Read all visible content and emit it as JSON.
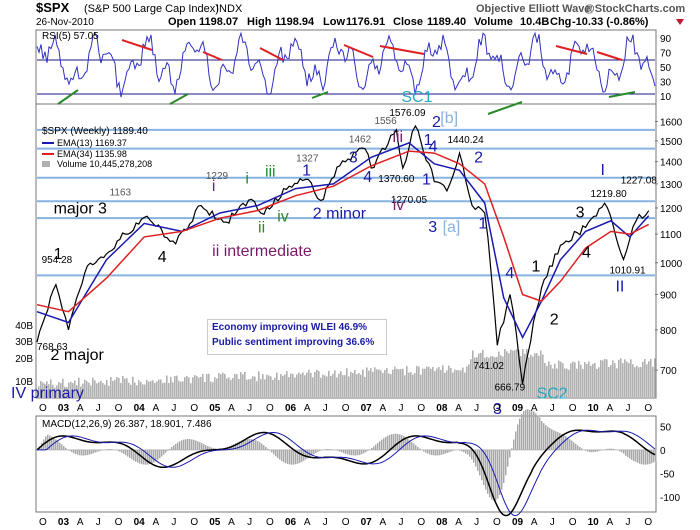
{
  "header": {
    "symbol": "$SPX",
    "index_name": "(S&P 500 Large Cap Index)",
    "exchange": "INDX",
    "brand": "Objective Elliott Wave",
    "source": "@StockCharts.com",
    "date": "26-Nov-2010",
    "open_label": "Open",
    "open": "1198.07",
    "high_label": "High",
    "high": "1198.94",
    "low_label": "Low",
    "low": "1176.91",
    "close_label": "Close",
    "close": "1189.40",
    "volume_label": "Volume",
    "volume": "10.4B",
    "chg_label": "Chg",
    "chg": "-10.33 (-0.86%)"
  },
  "legend": {
    "main": "$SPX (Weekly) 1189.40",
    "ema13": "EMA(13) 1169.37",
    "ema34": "EMA(34) 1135.98",
    "volume": "Volume 10,445,278,208"
  },
  "rsi_panel": {
    "label": "RSI(5) 57.05",
    "ticks": [
      "90",
      "70",
      "50",
      "30",
      "10"
    ],
    "values": [
      90,
      70,
      50,
      30,
      10
    ],
    "ylim": [
      0,
      100
    ]
  },
  "macd_panel": {
    "label": "MACD(12,26,9) 26.387, 18.901, 7.486",
    "ticks": [
      "50",
      "0",
      "-50",
      "-100"
    ],
    "values": [
      50,
      0,
      -50,
      -100
    ],
    "ylim": [
      -130,
      70
    ]
  },
  "volume_ticks": [
    "40B",
    "30B",
    "20B",
    "10B"
  ],
  "x_axis": {
    "months": [
      "O",
      "03",
      "A",
      "J",
      "O",
      "04",
      "A",
      "J",
      "O",
      "05",
      "A",
      "J",
      "O",
      "06",
      "A",
      "J",
      "O",
      "07",
      "A",
      "J",
      "O",
      "08",
      "A",
      "J",
      "O",
      "09",
      "A",
      "J",
      "O",
      "10",
      "A",
      "J",
      "O"
    ],
    "year_labels": [
      "03",
      "04",
      "05",
      "06",
      "07",
      "08",
      "09",
      "10"
    ]
  },
  "info_box": {
    "line1": "Economy improving WLEI 46.9%",
    "line2": "Public sentiment improving 36.6%"
  },
  "colors": {
    "price": "#000000",
    "ema13": "#1a1ab0",
    "ema34": "#e02020",
    "volume": "#b0b0b0",
    "rsi": "#3030c0",
    "level_lines": "#86b3e0",
    "wave_blue": "#1a1aa8",
    "wave_purple": "#7a1a6a",
    "wave_green": "#2a8a2a",
    "wave_cyan": "#29a6c0",
    "wave_lightblue": "#86b3e0"
  },
  "chart_data": {
    "type": "line",
    "title": "$SPX (S&P 500 Large Cap Index) INDX",
    "x_range": [
      "2002-10",
      "2010-11"
    ],
    "y_scale": "log",
    "ylim": [
      640,
      1690
    ],
    "price_ticks": [
      700,
      800,
      900,
      1000,
      1100,
      1200,
      1300,
      1400,
      1500,
      1600
    ],
    "horizontal_levels": [
      959,
      1160,
      1227,
      1327,
      1462,
      1556
    ],
    "series": [
      {
        "name": "$SPX (Weekly)",
        "x": [
          "2002-10",
          "2003-01",
          "2003-03",
          "2003-06",
          "2003-09",
          "2003-12",
          "2004-03",
          "2004-08",
          "2004-12",
          "2005-04",
          "2005-08",
          "2005-10",
          "2006-02",
          "2006-05",
          "2006-07",
          "2006-10",
          "2007-02",
          "2007-03",
          "2007-07",
          "2007-08",
          "2007-10",
          "2008-01",
          "2008-03",
          "2008-05",
          "2008-07",
          "2008-09",
          "2008-11",
          "2009-01",
          "2009-03",
          "2009-06",
          "2009-09",
          "2010-01",
          "2010-04",
          "2010-07",
          "2010-09",
          "2010-11"
        ],
        "values": [
          768,
          930,
          800,
          990,
          1030,
          1100,
          1163,
          1065,
          1210,
          1145,
          1235,
          1175,
          1290,
          1320,
          1230,
          1380,
          1462,
          1370,
          1556,
          1370,
          1576,
          1310,
          1270,
          1440,
          1210,
          1180,
          760,
          900,
          667,
          920,
          1060,
          1125,
          1219,
          1011,
          1150,
          1189
        ]
      },
      {
        "name": "EMA(13)",
        "x": [
          "2002-10",
          "2003-03",
          "2003-09",
          "2004-03",
          "2004-09",
          "2005-03",
          "2005-09",
          "2006-03",
          "2006-09",
          "2007-03",
          "2007-09",
          "2008-01",
          "2008-05",
          "2008-09",
          "2008-12",
          "2009-03",
          "2009-06",
          "2009-09",
          "2010-01",
          "2010-05",
          "2010-08",
          "2010-11"
        ],
        "values": [
          850,
          820,
          1010,
          1140,
          1110,
          1180,
          1210,
          1280,
          1300,
          1420,
          1490,
          1390,
          1360,
          1220,
          890,
          780,
          880,
          1010,
          1110,
          1150,
          1090,
          1169
        ]
      },
      {
        "name": "EMA(34)",
        "x": [
          "2002-10",
          "2003-03",
          "2003-09",
          "2004-03",
          "2004-09",
          "2005-03",
          "2005-09",
          "2006-03",
          "2006-09",
          "2007-03",
          "2007-09",
          "2008-01",
          "2008-05",
          "2008-09",
          "2008-12",
          "2009-03",
          "2009-06",
          "2009-09",
          "2010-01",
          "2010-05",
          "2010-08",
          "2010-11"
        ],
        "values": [
          870,
          850,
          950,
          1090,
          1110,
          1160,
          1190,
          1250,
          1290,
          1380,
          1450,
          1440,
          1390,
          1300,
          1090,
          900,
          880,
          940,
          1050,
          1110,
          1100,
          1136
        ]
      }
    ],
    "point_labels": [
      {
        "text": "954.28",
        "x": "2002-12",
        "y": 954.28,
        "color": "#000000",
        "size": 10,
        "dx": -8,
        "dy": -14
      },
      {
        "text": "768.63",
        "x": "2002-10",
        "y": 768.63,
        "color": "#000000",
        "size": 10,
        "dx": 0,
        "dy": 8
      },
      {
        "text": "1163",
        "x": "2004-01",
        "y": 1163,
        "color": "#555555",
        "size": 10,
        "dx": -22,
        "dy": -22
      },
      {
        "text": "1229",
        "x": "2005-03",
        "y": 1229,
        "color": "#555555",
        "size": 10,
        "dx": -14,
        "dy": -22
      },
      {
        "text": "1327",
        "x": "2006-05",
        "y": 1327,
        "color": "#555555",
        "size": 10,
        "dx": -12,
        "dy": -16
      },
      {
        "text": "1462",
        "x": "2007-02",
        "y": 1462,
        "color": "#555555",
        "size": 10,
        "dx": -16,
        "dy": -6
      },
      {
        "text": "1556",
        "x": "2007-07",
        "y": 1556,
        "color": "#555555",
        "size": 10,
        "dx": -22,
        "dy": -6
      },
      {
        "text": "1576.09",
        "x": "2007-10",
        "y": 1576.09,
        "color": "#000000",
        "size": 10,
        "dx": -26,
        "dy": -10
      },
      {
        "text": "1370.60",
        "x": "2008-01",
        "y": 1370.6,
        "color": "#000000",
        "size": 10,
        "dx": -56,
        "dy": 14
      },
      {
        "text": "1270.05",
        "x": "2008-03",
        "y": 1270.05,
        "color": "#000000",
        "size": 10,
        "dx": -56,
        "dy": 12
      },
      {
        "text": "1440.24",
        "x": "2008-05",
        "y": 1440.24,
        "color": "#000000",
        "size": 10,
        "dx": -12,
        "dy": -10
      },
      {
        "text": "741.02",
        "x": "2008-11",
        "y": 741.02,
        "color": "#000000",
        "size": 10,
        "dx": -24,
        "dy": 16
      },
      {
        "text": "666.79",
        "x": "2009-03",
        "y": 666.79,
        "color": "#000000",
        "size": 10,
        "dx": -28,
        "dy": 6
      },
      {
        "text": "1219.80",
        "x": "2010-04",
        "y": 1219.8,
        "color": "#000000",
        "size": 10,
        "dx": -14,
        "dy": -6
      },
      {
        "text": "1010.91",
        "x": "2010-07",
        "y": 1010.91,
        "color": "#000000",
        "size": 10,
        "dx": -14,
        "dy": 14
      },
      {
        "text": "1227.08",
        "x": "2010-11",
        "y": 1227.08,
        "color": "#000000",
        "size": 10,
        "dx": -28,
        "dy": -18
      }
    ],
    "wave_labels": [
      {
        "text": "1",
        "x": "2002-12",
        "y": 1000,
        "color": "#000000",
        "size": 16,
        "dx": 4,
        "dy": -4
      },
      {
        "text": "2 major",
        "x": "2003-03",
        "y": 800,
        "color": "#000000",
        "size": 16,
        "dx": -18,
        "dy": 30
      },
      {
        "text": "IV primary",
        "x": "2002-10",
        "y": 700,
        "color": "#1a1aa8",
        "size": 16,
        "dx": -26,
        "dy": 28
      },
      {
        "text": "major 3",
        "x": "2004-01",
        "y": 1163,
        "color": "#000000",
        "size": 16,
        "dx": -78,
        "dy": -4
      },
      {
        "text": "4",
        "x": "2004-08",
        "y": 1065,
        "color": "#000000",
        "size": 16,
        "dx": -18,
        "dy": 18
      },
      {
        "text": "i",
        "x": "2005-03",
        "y": 1229,
        "color": "#7a1a6a",
        "size": 16,
        "dx": -8,
        "dy": -10
      },
      {
        "text": "ii intermediate",
        "x": "2005-04",
        "y": 1145,
        "color": "#7a1a6a",
        "size": 16,
        "dx": -14,
        "dy": 34
      },
      {
        "text": "i",
        "x": "2005-08",
        "y": 1235,
        "color": "#2a8a2a",
        "size": 16,
        "dx": -6,
        "dy": -16
      },
      {
        "text": "ii",
        "x": "2005-10",
        "y": 1175,
        "color": "#2a8a2a",
        "size": 16,
        "dx": -6,
        "dy": 18
      },
      {
        "text": "iii",
        "x": "2006-01",
        "y": 1280,
        "color": "#2a8a2a",
        "size": 16,
        "dx": -18,
        "dy": -12
      },
      {
        "text": "iv",
        "x": "2006-02",
        "y": 1250,
        "color": "#2a8a2a",
        "size": 16,
        "dx": -12,
        "dy": 26
      },
      {
        "text": "1",
        "x": "2006-05",
        "y": 1327,
        "color": "#1a1aa8",
        "size": 16,
        "dx": -6,
        "dy": -2
      },
      {
        "text": "2 minor",
        "x": "2006-07",
        "y": 1230,
        "color": "#1a1aa8",
        "size": 16,
        "dx": -8,
        "dy": 18
      },
      {
        "text": "3",
        "x": "2007-02",
        "y": 1462,
        "color": "#1a1aa8",
        "size": 16,
        "dx": -16,
        "dy": 14
      },
      {
        "text": "4",
        "x": "2007-03",
        "y": 1370,
        "color": "#1a1aa8",
        "size": 16,
        "dx": -8,
        "dy": 14
      },
      {
        "text": "iii",
        "x": "2007-07",
        "y": 1556,
        "color": "#7a1a6a",
        "size": 16,
        "dx": -4,
        "dy": 12
      },
      {
        "text": "iv",
        "x": "2007-08",
        "y": 1370,
        "color": "#7a1a6a",
        "size": 16,
        "dx": -10,
        "dy": 42
      },
      {
        "text": "SC1",
        "x": "2007-10",
        "y": 1576,
        "color": "#29a6c0",
        "size": 16,
        "dx": -14,
        "dy": -24
      },
      {
        "text": "1",
        "x": "2007-11",
        "y": 1470,
        "color": "#1a1aa8",
        "size": 16,
        "dx": 2,
        "dy": -2
      },
      {
        "text": "2",
        "x": "2007-12",
        "y": 1520,
        "color": "#1a1aa8",
        "size": 16,
        "dx": 4,
        "dy": -10
      },
      {
        "text": "[b]",
        "x": "2008-01",
        "y": 1560,
        "color": "#86b3e0",
        "size": 16,
        "dx": 6,
        "dy": -6
      },
      {
        "text": "4",
        "x": "2008-02",
        "y": 1400,
        "color": "#1a1aa8",
        "size": 16,
        "dx": -12,
        "dy": -10
      },
      {
        "text": "1",
        "x": "2007-12",
        "y": 1350,
        "color": "#1a1aa8",
        "size": 16,
        "dx": -6,
        "dy": 12
      },
      {
        "text": "3",
        "x": "2008-01",
        "y": 1200,
        "color": "#1a1aa8",
        "size": 16,
        "dx": -6,
        "dy": 24
      },
      {
        "text": "[a]",
        "x": "2008-02",
        "y": 1200,
        "color": "#86b3e0",
        "size": 16,
        "dx": 2,
        "dy": 24
      },
      {
        "text": "2",
        "x": "2008-07",
        "y": 1360,
        "color": "#1a1aa8",
        "size": 16,
        "dx": 2,
        "dy": -8
      },
      {
        "text": "1",
        "x": "2008-08",
        "y": 1190,
        "color": "#1a1aa8",
        "size": 16,
        "dx": 0,
        "dy": 18
      },
      {
        "text": "4",
        "x": "2008-11",
        "y": 920,
        "color": "#1a1aa8",
        "size": 16,
        "dx": 8,
        "dy": -10
      },
      {
        "text": "3",
        "x": "2008-10",
        "y": 700,
        "color": "#1a1aa8",
        "size": 16,
        "dx": 2,
        "dy": 44
      },
      {
        "text": "SC2",
        "x": "2009-03",
        "y": 667,
        "color": "#29a6c0",
        "size": 16,
        "dx": 14,
        "dy": 14
      },
      {
        "text": "1",
        "x": "2009-06",
        "y": 940,
        "color": "#000000",
        "size": 16,
        "dx": -10,
        "dy": -10
      },
      {
        "text": "2",
        "x": "2009-07",
        "y": 870,
        "color": "#000000",
        "size": 16,
        "dx": 2,
        "dy": 20
      },
      {
        "text": "3",
        "x": "2010-01",
        "y": 1140,
        "color": "#000000",
        "size": 16,
        "dx": -10,
        "dy": -6
      },
      {
        "text": "4",
        "x": "2010-02",
        "y": 1060,
        "color": "#000000",
        "size": 16,
        "dx": -10,
        "dy": 12
      },
      {
        "text": "I",
        "x": "2010-04",
        "y": 1219.8,
        "color": "#1a1aa8",
        "size": 16,
        "dx": -4,
        "dy": -28
      },
      {
        "text": "II",
        "x": "2010-07",
        "y": 1010.91,
        "color": "#1a1aa8",
        "size": 16,
        "dx": -8,
        "dy": 32
      }
    ]
  }
}
